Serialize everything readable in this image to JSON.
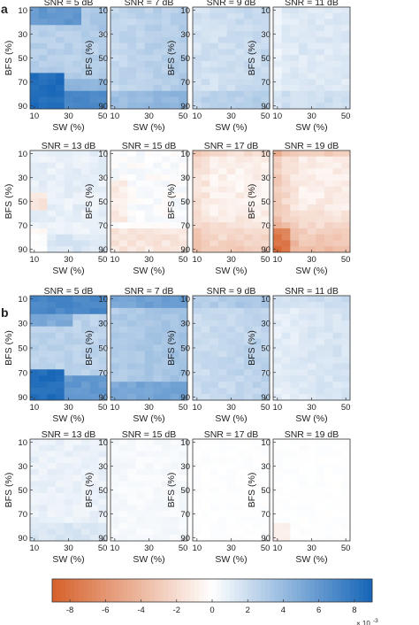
{
  "figure": {
    "panel_labels": [
      "a",
      "b"
    ]
  },
  "chart_data": {
    "type": "heatmap",
    "xlabel": "SW (%)",
    "ylabel": "BFS (%)",
    "x_ticks": [
      10,
      30,
      50
    ],
    "y_ticks": [
      10,
      30,
      50,
      70,
      90
    ],
    "x": [
      10,
      15,
      20,
      25,
      30,
      35,
      40,
      45,
      50
    ],
    "y": [
      10,
      15,
      20,
      25,
      30,
      35,
      40,
      45,
      50,
      55,
      60,
      65,
      70,
      75,
      80,
      85,
      90
    ],
    "colorbar": {
      "range": [
        -9,
        9
      ],
      "ticks": [
        -8,
        -6,
        -4,
        -2,
        0,
        2,
        4,
        6,
        8
      ],
      "multiplier": "× 10",
      "exponent": "-3",
      "low_color": "#d6602a",
      "mid_color": "#ffffff",
      "high_color": "#1565b7"
    },
    "groups": [
      {
        "label": "a",
        "panels": [
          {
            "title": "SNR = 5 dB",
            "snr": 5
          },
          {
            "title": "SNR = 7 dB",
            "snr": 7
          },
          {
            "title": "SNR = 9 dB",
            "snr": 9
          },
          {
            "title": "SNR = 11 dB",
            "snr": 11
          },
          {
            "title": "SNR = 13 dB",
            "snr": 13
          },
          {
            "title": "SNR = 15 dB",
            "snr": 15
          },
          {
            "title": "SNR = 17 dB",
            "snr": 17
          },
          {
            "title": "SNR = 19 dB",
            "snr": 19
          }
        ]
      },
      {
        "label": "b",
        "panels": [
          {
            "title": "SNR = 5 dB",
            "snr": 5
          },
          {
            "title": "SNR = 7 dB",
            "snr": 7
          },
          {
            "title": "SNR = 9 dB",
            "snr": 9
          },
          {
            "title": "SNR = 11 dB",
            "snr": 11
          },
          {
            "title": "SNR = 13 dB",
            "snr": 13
          },
          {
            "title": "SNR = 15 dB",
            "snr": 15
          },
          {
            "title": "SNR = 17 dB",
            "snr": 17
          },
          {
            "title": "SNR = 19 dB",
            "snr": 19
          }
        ]
      }
    ]
  }
}
